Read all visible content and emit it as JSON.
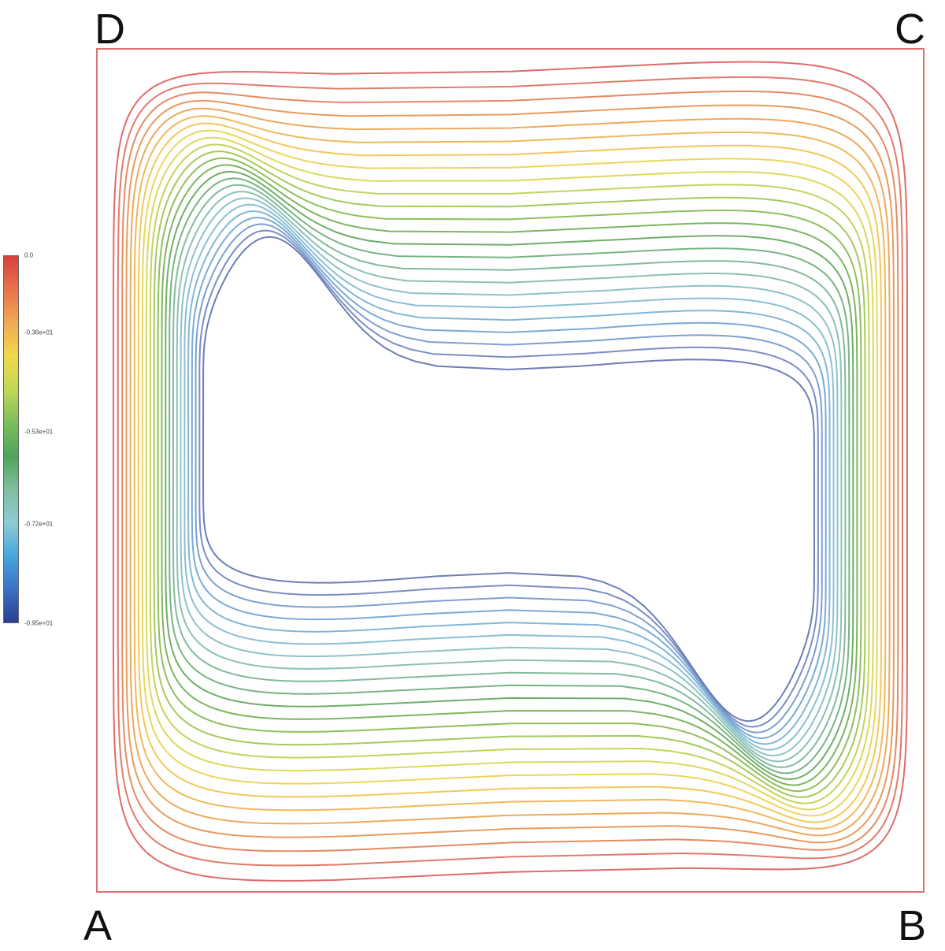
{
  "corners": {
    "top_left": "D",
    "top_right": "C",
    "bottom_left": "A",
    "bottom_right": "B"
  },
  "colorbar": {
    "ticks": [
      {
        "label": "0.0",
        "frac": 0.0
      },
      {
        "label": "-0.36e+01",
        "frac": 0.21
      },
      {
        "label": "-0.53e+01",
        "frac": 0.48
      },
      {
        "label": "-0.72e+01",
        "frac": 0.73
      },
      {
        "label": "-0.95e+01",
        "frac": 1.0
      }
    ],
    "gradient": [
      "#d94040",
      "#e8734a",
      "#f0a955",
      "#f2d84c",
      "#c2d855",
      "#7cbf5c",
      "#4fa35a",
      "#7fbf9f",
      "#8ecbd6",
      "#47a6dd",
      "#3a72c4",
      "#2c3e8f"
    ]
  },
  "box": {
    "border_color": "#e07070"
  },
  "contours": {
    "count": 24,
    "colors": [
      "#e06a6a",
      "#e27a6a",
      "#e58a62",
      "#e99a5e",
      "#eda95c",
      "#f0b85b",
      "#f2c85a",
      "#eed55a",
      "#dcd95c",
      "#c4d35c",
      "#a6c95c",
      "#8fbf5c",
      "#7bb65e",
      "#6fae68",
      "#78b482",
      "#82ba9c",
      "#8cc0b4",
      "#8fc2c7",
      "#8bbfd4",
      "#82b6d8",
      "#7aaad7",
      "#7f9fd0",
      "#7a8ec4",
      "#6e7db5"
    ]
  }
}
